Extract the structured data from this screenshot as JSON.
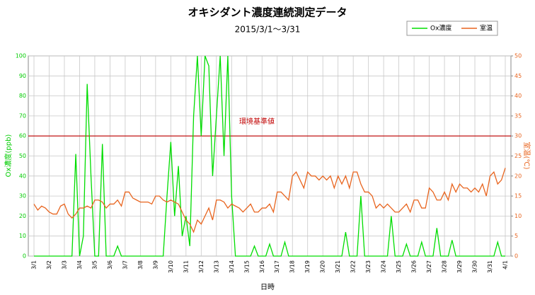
{
  "chart_data": {
    "type": "line",
    "title": "オキシダント濃度連続測定データ",
    "subtitle": "2015/3/1～3/31",
    "xlabel": "日時",
    "ylabel": "Ox濃度(ppb)",
    "y2label": "室温(℃)",
    "xlim": [
      0,
      31
    ],
    "xticks": [
      {
        "value": 0,
        "label": "3/1"
      },
      {
        "value": 1,
        "label": "3/2"
      },
      {
        "value": 2,
        "label": "3/3"
      },
      {
        "value": 3,
        "label": "3/4"
      },
      {
        "value": 4,
        "label": "3/5"
      },
      {
        "value": 5,
        "label": "3/6"
      },
      {
        "value": 6,
        "label": "3/7"
      },
      {
        "value": 7,
        "label": "3/8"
      },
      {
        "value": 8,
        "label": "3/9"
      },
      {
        "value": 9,
        "label": "3/10"
      },
      {
        "value": 10,
        "label": "3/11"
      },
      {
        "value": 11,
        "label": "3/12"
      },
      {
        "value": 12,
        "label": "3/13"
      },
      {
        "value": 13,
        "label": "3/14"
      },
      {
        "value": 14,
        "label": "3/15"
      },
      {
        "value": 15,
        "label": "3/16"
      },
      {
        "value": 16,
        "label": "3/17"
      },
      {
        "value": 17,
        "label": "3/18"
      },
      {
        "value": 18,
        "label": "3/19"
      },
      {
        "value": 19,
        "label": "3/20"
      },
      {
        "value": 20,
        "label": "3/21"
      },
      {
        "value": 21,
        "label": "3/22"
      },
      {
        "value": 22,
        "label": "3/23"
      },
      {
        "value": 23,
        "label": "3/24"
      },
      {
        "value": 24,
        "label": "3/25"
      },
      {
        "value": 25,
        "label": "3/26"
      },
      {
        "value": 26,
        "label": "3/27"
      },
      {
        "value": 27,
        "label": "3/28"
      },
      {
        "value": 28,
        "label": "3/29"
      },
      {
        "value": 29,
        "label": "3/30"
      },
      {
        "value": 30,
        "label": "3/31"
      },
      {
        "value": 31,
        "label": "4/1"
      }
    ],
    "ylim": [
      0,
      100
    ],
    "yticks": [
      0,
      10,
      20,
      30,
      40,
      50,
      60,
      70,
      80,
      90,
      100
    ],
    "y2lim": [
      0,
      50
    ],
    "y2ticks": [
      0,
      5,
      10,
      15,
      20,
      25,
      30,
      35,
      40,
      45,
      50
    ],
    "grid": true,
    "legend": "top-right",
    "reference_line": {
      "value": 60,
      "label": "環境基準値",
      "color": "#c00000"
    },
    "x": [
      0,
      0.25,
      0.5,
      0.75,
      1,
      1.25,
      1.5,
      1.75,
      2,
      2.25,
      2.5,
      2.75,
      3,
      3.25,
      3.5,
      3.75,
      4,
      4.25,
      4.5,
      4.75,
      5,
      5.25,
      5.5,
      5.75,
      6,
      6.25,
      6.5,
      6.75,
      7,
      7.25,
      7.5,
      7.75,
      8,
      8.25,
      8.5,
      8.75,
      9,
      9.25,
      9.5,
      9.75,
      10,
      10.25,
      10.5,
      10.75,
      11,
      11.25,
      11.5,
      11.75,
      12,
      12.25,
      12.5,
      12.75,
      13,
      13.25,
      13.5,
      13.75,
      14,
      14.25,
      14.5,
      14.75,
      15,
      15.25,
      15.5,
      15.75,
      16,
      16.25,
      16.5,
      16.75,
      17,
      17.25,
      17.5,
      17.75,
      18,
      18.25,
      18.5,
      18.75,
      19,
      19.25,
      19.5,
      19.75,
      20,
      20.25,
      20.5,
      20.75,
      21,
      21.25,
      21.5,
      21.75,
      22,
      22.25,
      22.5,
      22.75,
      23,
      23.25,
      23.5,
      23.75,
      24,
      24.25,
      24.5,
      24.75,
      25,
      25.25,
      25.5,
      25.75,
      26,
      26.25,
      26.5,
      26.75,
      27,
      27.25,
      27.5,
      27.75,
      28,
      28.25,
      28.5,
      28.75,
      29,
      29.25,
      29.5,
      29.75,
      30,
      30.25,
      30.5,
      30.75,
      31
    ],
    "series": [
      {
        "name": "Ox濃度",
        "color": "#00dd00",
        "axis": "y",
        "values": [
          0,
          0,
          0,
          0,
          0,
          0,
          0,
          0,
          0,
          0,
          0,
          51,
          0,
          10,
          86,
          40,
          0,
          0,
          56,
          0,
          0,
          0,
          5,
          0,
          0,
          0,
          0,
          0,
          0,
          0,
          0,
          0,
          0,
          0,
          0,
          30,
          57,
          20,
          45,
          10,
          20,
          5,
          70,
          100,
          60,
          100,
          95,
          40,
          70,
          100,
          50,
          100,
          30,
          0,
          0,
          0,
          0,
          0,
          5,
          0,
          0,
          0,
          6,
          0,
          0,
          0,
          7,
          0,
          0,
          0,
          0,
          0,
          0,
          0,
          0,
          0,
          0,
          0,
          0,
          0,
          0,
          0,
          12,
          0,
          0,
          0,
          30,
          0,
          0,
          0,
          0,
          0,
          0,
          0,
          20,
          0,
          0,
          0,
          6,
          0,
          0,
          0,
          7,
          0,
          0,
          0,
          14,
          0,
          0,
          0,
          8,
          0,
          0,
          0,
          0,
          0,
          0,
          0,
          0,
          0,
          0,
          0,
          7,
          0,
          0
        ]
      },
      {
        "name": "室温",
        "color": "#e8641e",
        "axis": "y2",
        "values": [
          13,
          11.5,
          12.5,
          12,
          11,
          10.5,
          10.5,
          12.5,
          13,
          10.5,
          9.5,
          10.5,
          12,
          12,
          12.5,
          12,
          14,
          14,
          13.5,
          12,
          13,
          13,
          14,
          12.5,
          16,
          16,
          14.5,
          14,
          13.5,
          13.5,
          13.5,
          13,
          15,
          15,
          14,
          13.5,
          14,
          13.5,
          13,
          11,
          9,
          8,
          6,
          9,
          8,
          10,
          12,
          9,
          14,
          14,
          13.5,
          12,
          13,
          12.5,
          12,
          11,
          12,
          13,
          11,
          11,
          12,
          12,
          13,
          11,
          16,
          16,
          15,
          14,
          20,
          21,
          19,
          17,
          21,
          20,
          20,
          19,
          20,
          19,
          20,
          17,
          20,
          18,
          20,
          17,
          21,
          21,
          18,
          16,
          16,
          15,
          12,
          13,
          12,
          13,
          12,
          11,
          11,
          12,
          13,
          11,
          14,
          14,
          12,
          12,
          17,
          16,
          14,
          14,
          16,
          14,
          18,
          16,
          18,
          17,
          17,
          16,
          17,
          16,
          18,
          15,
          20,
          21,
          18,
          19,
          22
        ]
      }
    ]
  }
}
